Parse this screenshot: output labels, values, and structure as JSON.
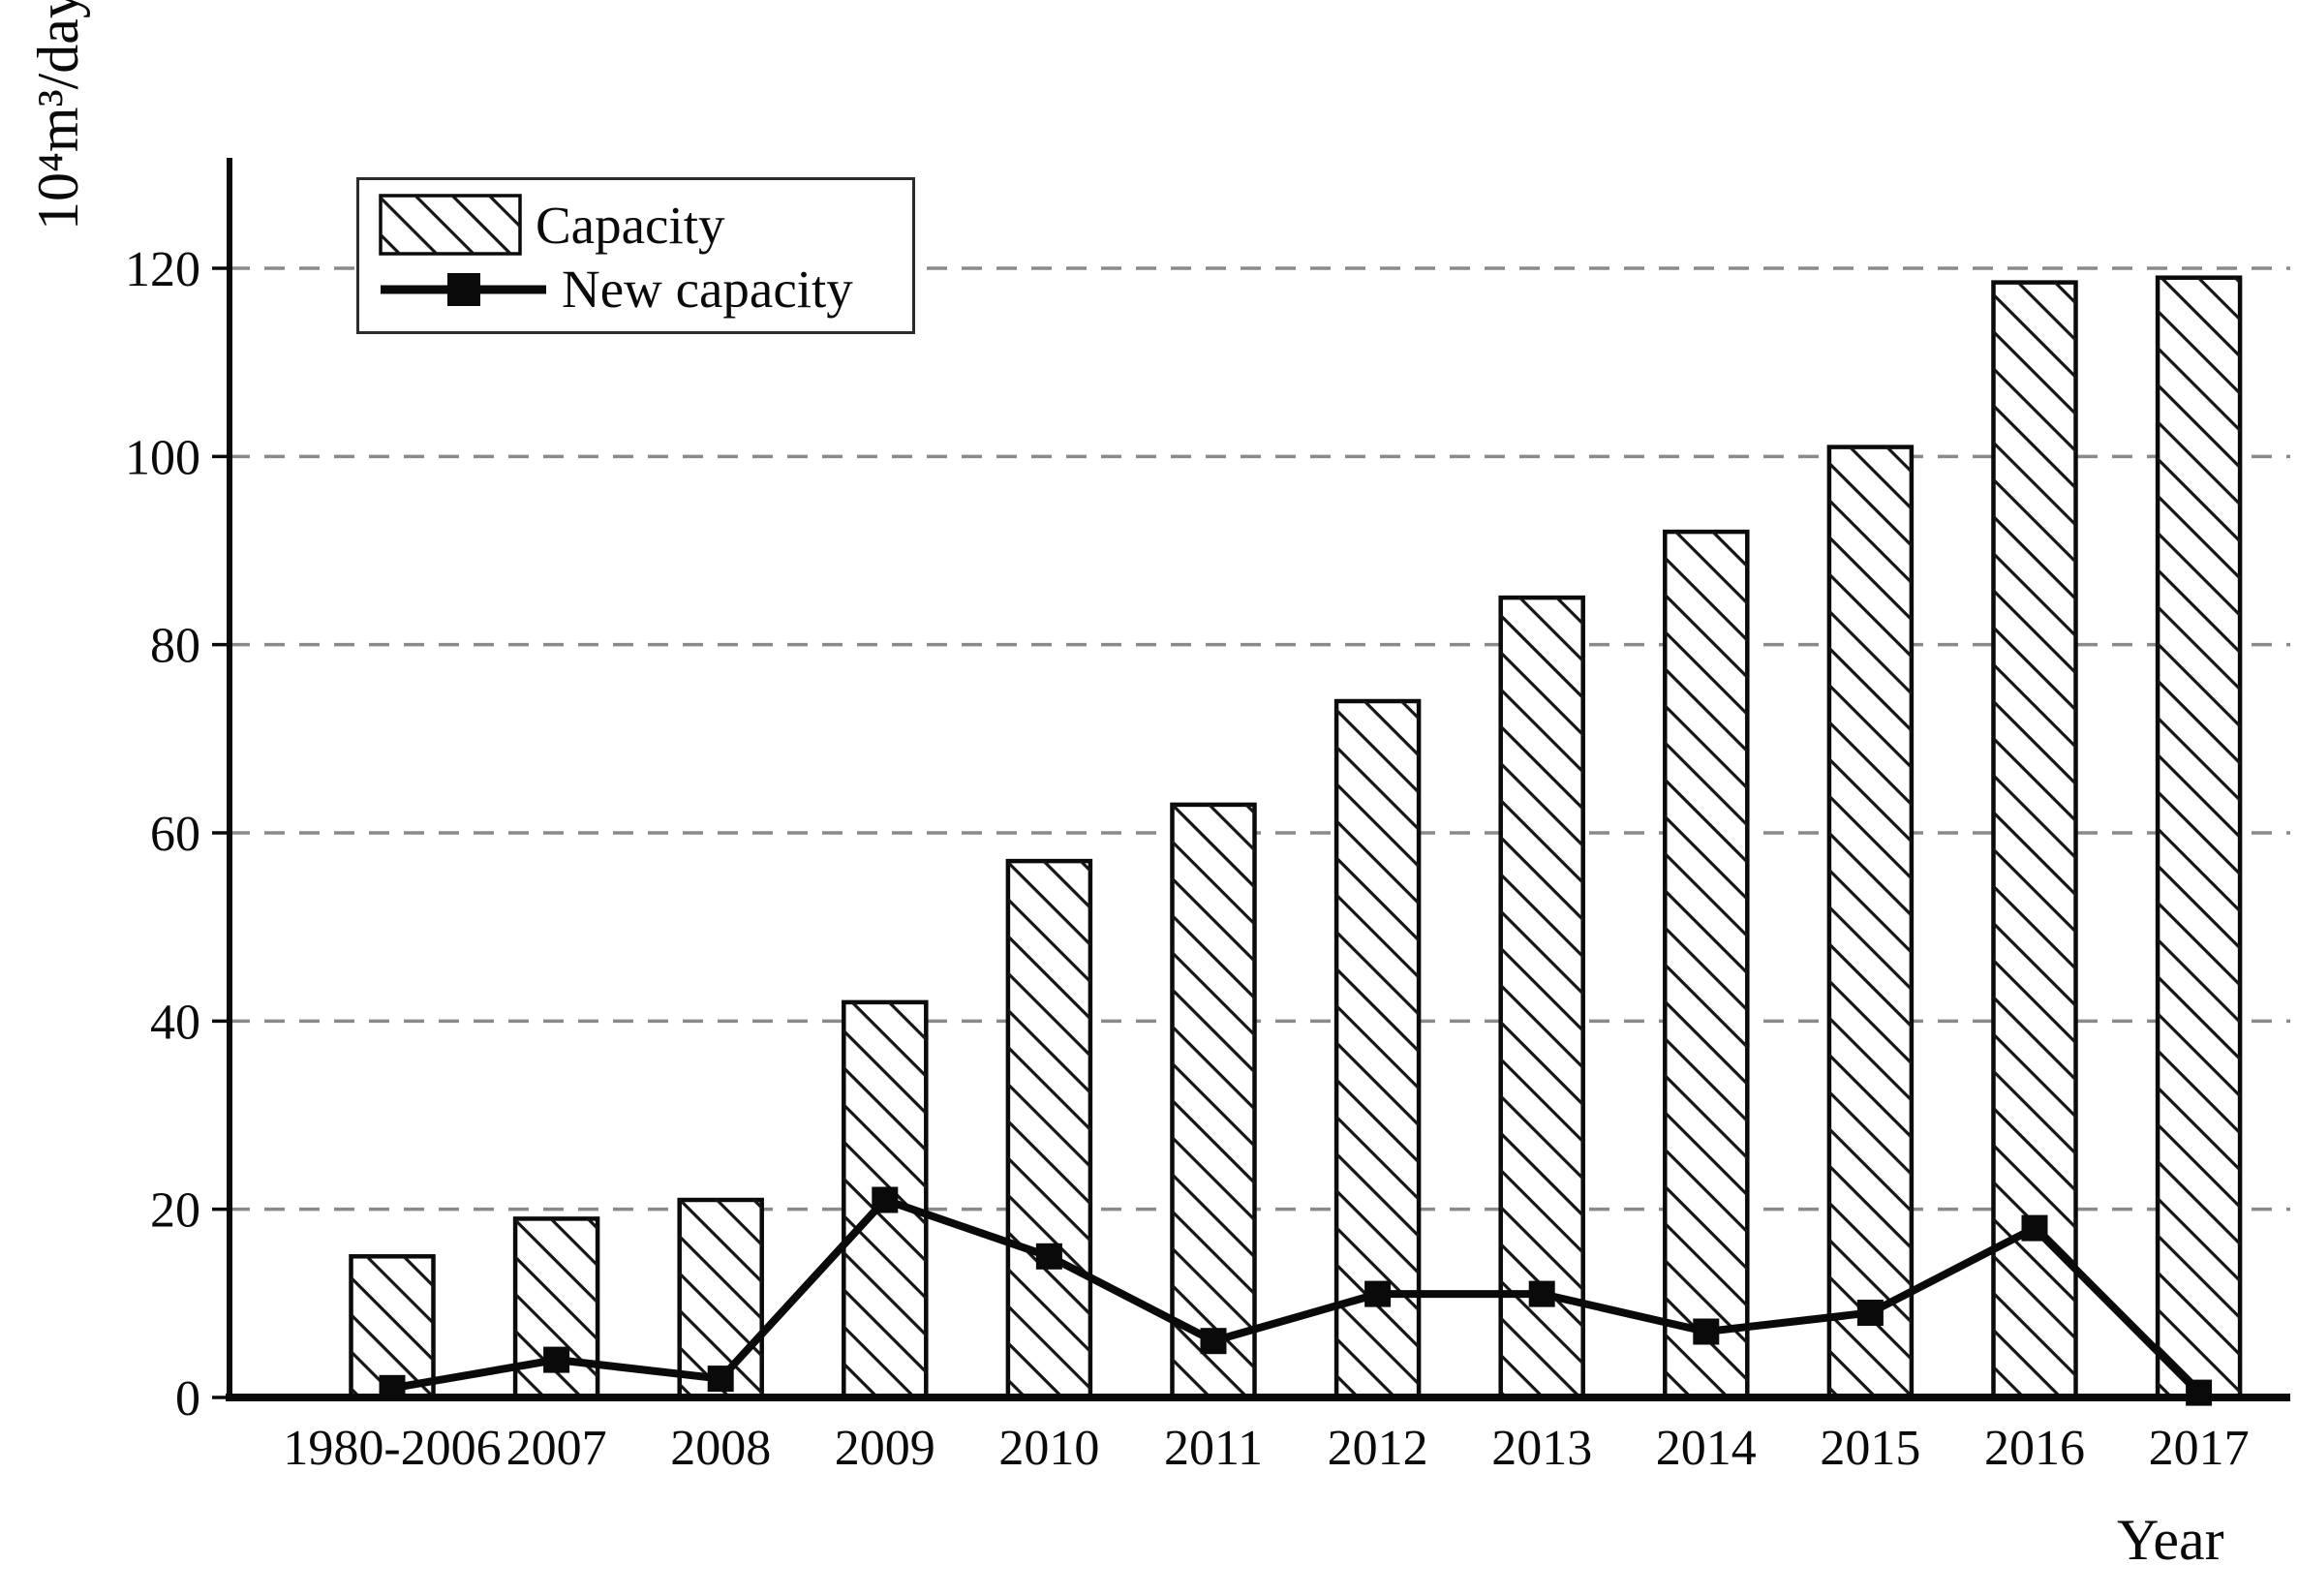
{
  "figure": {
    "y_axis_unit": "10⁴m³/day",
    "x_axis_title": "Year"
  },
  "legend": {
    "items": [
      {
        "label": "Capacity",
        "symbol": "hatched-bar"
      },
      {
        "label": "New capacity",
        "symbol": "line-with-square-marker"
      }
    ]
  },
  "chart_data": {
    "type": "bar+line",
    "title": "",
    "xlabel": "Year",
    "ylabel": "10⁴m³/day",
    "categories": [
      "1980-2006",
      "2007",
      "2008",
      "2009",
      "2010",
      "2011",
      "2012",
      "2013",
      "2014",
      "2015",
      "2016",
      "2017"
    ],
    "series": [
      {
        "name": "Capacity",
        "type": "bar",
        "style": "white fill, black diagonal hatch",
        "values": [
          15,
          19,
          21,
          42,
          57,
          63,
          74,
          85,
          92,
          101,
          118.5,
          119
        ]
      },
      {
        "name": "New capacity",
        "type": "line",
        "style": "black line with filled square markers",
        "values": [
          1,
          4,
          2,
          21,
          15,
          6,
          11,
          11,
          7,
          9,
          18,
          0.5
        ]
      }
    ],
    "yticks": [
      0,
      20,
      40,
      60,
      80,
      100,
      120
    ],
    "ylim": [
      0,
      132
    ],
    "grid": "horizontal dashed gray lines at each ytick",
    "legend_position": "top-left inside plot",
    "colors": {
      "stroke": "#0a0a0a",
      "bar_fill": "#ffffff",
      "gridline": "#8a8a8a",
      "background": "#ffffff"
    }
  }
}
